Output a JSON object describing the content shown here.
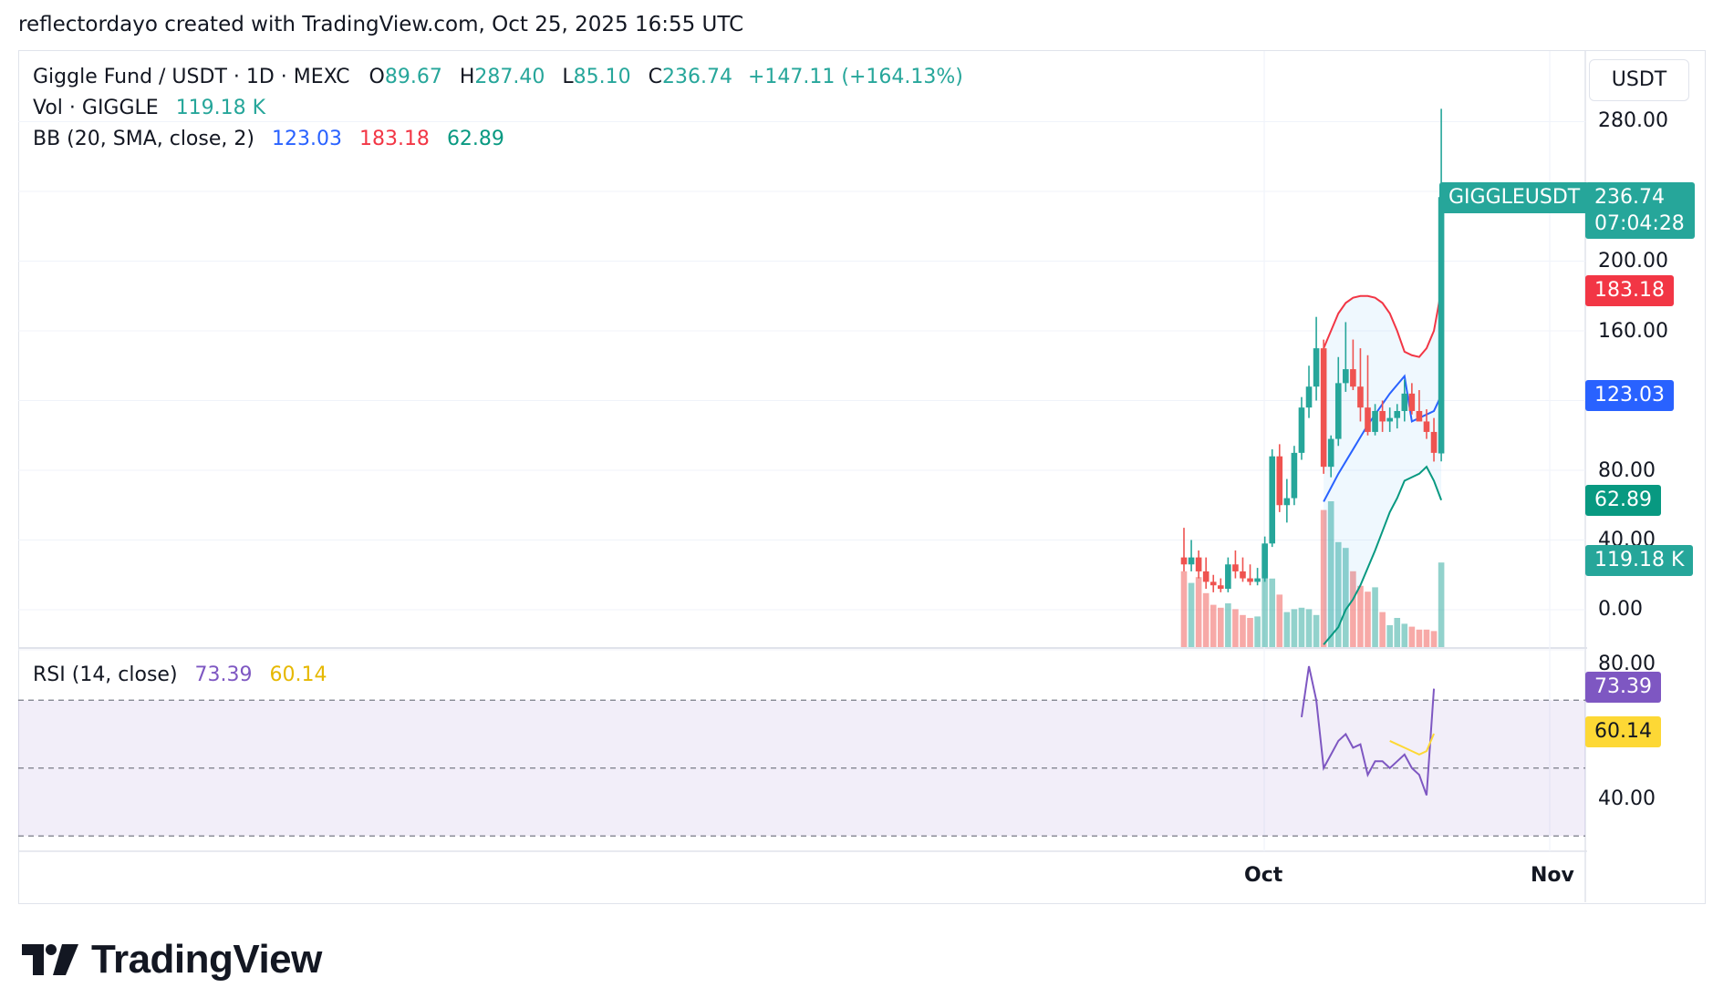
{
  "header": {
    "text": "reflectordayo created with TradingView.com, Oct 25, 2025 16:55 UTC"
  },
  "legend": {
    "symbol": "Giggle Fund / USDT · 1D · MEXC",
    "o_label": "O",
    "o_value": "89.67",
    "h_label": "H",
    "h_value": "287.40",
    "l_label": "L",
    "l_value": "85.10",
    "c_label": "C",
    "c_value": "236.74",
    "change": "+147.11 (+164.13%)",
    "vol_label": "Vol · GIGGLE",
    "vol_value": "119.18 K",
    "bb_label": "BB (20, SMA, close, 2)",
    "bb_basis": "123.03",
    "bb_upper": "183.18",
    "bb_lower": "62.89",
    "rsi_label": "RSI (14, close)",
    "rsi_value": "73.39",
    "rsi_ma": "60.14"
  },
  "currency_button": "USDT",
  "price_axis": [
    "280.00",
    "200.00",
    "160.00",
    "80.00",
    "40.00",
    "0.00"
  ],
  "rsi_axis": [
    "80.00",
    "40.00"
  ],
  "time_axis": [
    "Oct",
    "Nov"
  ],
  "badges": {
    "symbol_tag": "GIGGLEUSDT",
    "last_price": "236.74",
    "countdown": "07:04:28",
    "bb_upper": "183.18",
    "bb_basis": "123.03",
    "bb_lower": "62.89",
    "volume": "119.18 K",
    "rsi": "73.39",
    "rsi_ma": "60.14"
  },
  "colors": {
    "up": "#26a69a",
    "down": "#ef5350",
    "bb_basis": "#2962ff",
    "bb_upper": "#f23645",
    "bb_lower": "#089981",
    "rsi": "#7e57c2",
    "rsi_ma": "#fdd835"
  },
  "brand": "TradingView",
  "chart_data": {
    "type": "candlestick",
    "title": "Giggle Fund / USDT · 1D · MEXC",
    "candles": [
      {
        "o": 30,
        "h": 47,
        "l": 22,
        "c": 26
      },
      {
        "o": 26,
        "h": 40,
        "l": 22,
        "c": 30
      },
      {
        "o": 30,
        "h": 34,
        "l": 18,
        "c": 22
      },
      {
        "o": 22,
        "h": 30,
        "l": 12,
        "c": 16
      },
      {
        "o": 16,
        "h": 20,
        "l": 10,
        "c": 14
      },
      {
        "o": 14,
        "h": 18,
        "l": 10,
        "c": 12
      },
      {
        "o": 12,
        "h": 30,
        "l": 10,
        "c": 26
      },
      {
        "o": 26,
        "h": 34,
        "l": 18,
        "c": 22
      },
      {
        "o": 22,
        "h": 30,
        "l": 16,
        "c": 18
      },
      {
        "o": 18,
        "h": 26,
        "l": 14,
        "c": 16
      },
      {
        "o": 16,
        "h": 24,
        "l": 14,
        "c": 18
      },
      {
        "o": 18,
        "h": 42,
        "l": 16,
        "c": 38
      },
      {
        "o": 38,
        "h": 92,
        "l": 36,
        "c": 88
      },
      {
        "o": 88,
        "h": 95,
        "l": 56,
        "c": 60
      },
      {
        "o": 60,
        "h": 75,
        "l": 50,
        "c": 64
      },
      {
        "o": 64,
        "h": 94,
        "l": 60,
        "c": 90
      },
      {
        "o": 90,
        "h": 122,
        "l": 86,
        "c": 116
      },
      {
        "o": 116,
        "h": 140,
        "l": 110,
        "c": 128
      },
      {
        "o": 128,
        "h": 168,
        "l": 120,
        "c": 150
      },
      {
        "o": 150,
        "h": 155,
        "l": 78,
        "c": 82
      },
      {
        "o": 82,
        "h": 100,
        "l": 76,
        "c": 98
      },
      {
        "o": 98,
        "h": 145,
        "l": 94,
        "c": 130
      },
      {
        "o": 130,
        "h": 165,
        "l": 125,
        "c": 138
      },
      {
        "o": 138,
        "h": 155,
        "l": 126,
        "c": 128
      },
      {
        "o": 128,
        "h": 150,
        "l": 108,
        "c": 116
      },
      {
        "o": 116,
        "h": 146,
        "l": 100,
        "c": 102
      },
      {
        "o": 102,
        "h": 118,
        "l": 100,
        "c": 114
      },
      {
        "o": 114,
        "h": 120,
        "l": 102,
        "c": 108
      },
      {
        "o": 108,
        "h": 116,
        "l": 102,
        "c": 110
      },
      {
        "o": 110,
        "h": 118,
        "l": 104,
        "c": 114
      },
      {
        "o": 114,
        "h": 132,
        "l": 108,
        "c": 124
      },
      {
        "o": 124,
        "h": 130,
        "l": 112,
        "c": 114
      },
      {
        "o": 114,
        "h": 126,
        "l": 110,
        "c": 108
      },
      {
        "o": 108,
        "h": 115,
        "l": 98,
        "c": 102
      },
      {
        "o": 102,
        "h": 110,
        "l": 85,
        "c": 90
      },
      {
        "o": 89.67,
        "h": 287.4,
        "l": 85.1,
        "c": 236.74
      }
    ],
    "volume": [
      0.52,
      0.44,
      0.48,
      0.37,
      0.29,
      0.27,
      0.3,
      0.26,
      0.22,
      0.2,
      0.21,
      0.7,
      0.47,
      0.36,
      0.24,
      0.26,
      0.27,
      0.26,
      0.22,
      0.94,
      1.0,
      0.72,
      0.68,
      0.52,
      0.42,
      0.38,
      0.41,
      0.24,
      0.15,
      0.2,
      0.16,
      0.14,
      0.12,
      0.12,
      0.11,
      0.58
    ],
    "bb_start_index": 19,
    "bb_basis": [
      62,
      70,
      78,
      85,
      92,
      99,
      106,
      112,
      118,
      124,
      129,
      134,
      108,
      110,
      112,
      114,
      123.03
    ],
    "bb_upper": [
      150,
      160,
      170,
      176,
      179,
      180,
      180,
      179,
      176,
      170,
      160,
      148,
      146,
      145,
      150,
      160,
      183.18
    ],
    "bb_lower": [
      -20,
      -15,
      -10,
      0,
      6,
      14,
      24,
      34,
      45,
      56,
      64,
      74,
      76,
      78,
      82,
      74,
      62.89
    ],
    "rsi_start_index": 16,
    "rsi": [
      65,
      80,
      70,
      50,
      54,
      58,
      60,
      56,
      57,
      48,
      52,
      52,
      50,
      52,
      54,
      50,
      48,
      42,
      73.39
    ],
    "rsi_ma_start_index": 28,
    "rsi_ma": [
      58,
      57,
      56,
      55,
      54,
      55,
      60.14
    ],
    "price_axis_range": [
      0,
      300
    ],
    "rsi_axis_range": [
      20,
      85
    ],
    "rsi_bands": [
      70,
      50,
      30
    ]
  }
}
